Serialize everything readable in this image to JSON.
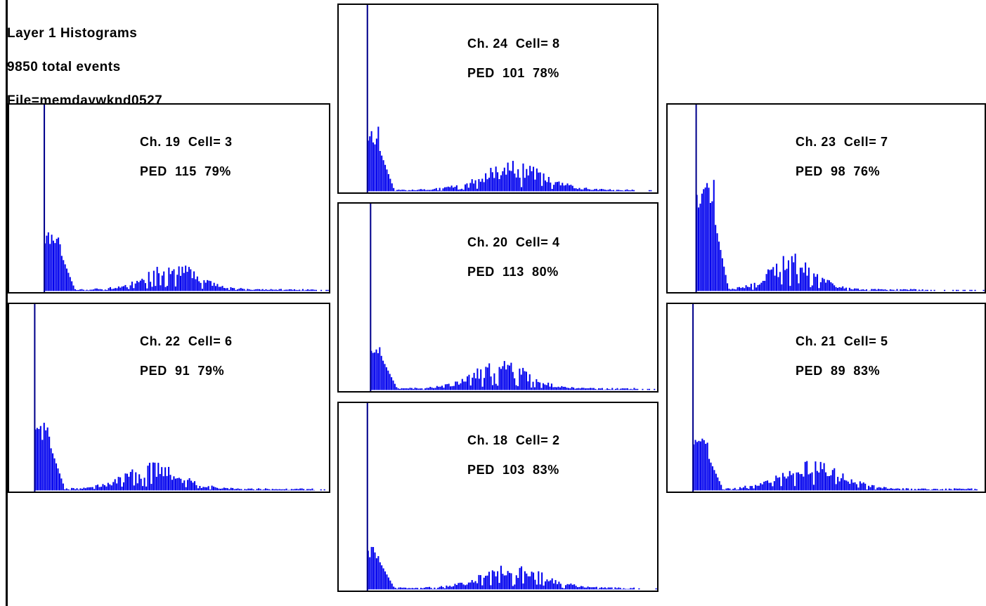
{
  "header": {
    "title": "Layer 1 Histograms",
    "events": "9850 total events",
    "file": "File=memdaywknd0527"
  },
  "colors": {
    "bars": "#0000ee",
    "pedestal_line": "#00008b",
    "frame": "#000000"
  },
  "chart_data": [
    {
      "type": "bar",
      "channel_label": "Ch. 24  Cell= 8",
      "ped_label": "PED  101  78%",
      "pedestal_bin": 0.09,
      "profile": {
        "spike": 0.35,
        "spike_w": 0.04,
        "hump_center": 0.5,
        "hump_height": 0.11,
        "hump_width": 0.22,
        "tail_end": 0.92
      }
    },
    {
      "type": "bar",
      "channel_label": "Ch. 19  Cell= 3",
      "ped_label": "PED  115  79%",
      "pedestal_bin": 0.11,
      "profile": {
        "spike": 0.32,
        "spike_w": 0.055,
        "hump_center": 0.45,
        "hump_height": 0.1,
        "hump_width": 0.2,
        "tail_end": 0.95
      }
    },
    {
      "type": "bar",
      "channel_label": "Ch. 23  Cell= 7",
      "ped_label": "PED  98  76%",
      "pedestal_bin": 0.09,
      "profile": {
        "spike": 0.63,
        "spike_w": 0.06,
        "hump_center": 0.33,
        "hump_height": 0.14,
        "hump_width": 0.16,
        "tail_end": 0.8
      }
    },
    {
      "type": "bar",
      "channel_label": "Ch. 20  Cell= 4",
      "ped_label": "PED  113  80%",
      "pedestal_bin": 0.1,
      "profile": {
        "spike": 0.25,
        "spike_w": 0.04,
        "hump_center": 0.45,
        "hump_height": 0.11,
        "hump_width": 0.2,
        "tail_end": 0.92
      }
    },
    {
      "type": "bar",
      "channel_label": "Ch. 22  Cell= 6",
      "ped_label": "PED  91  79%",
      "pedestal_bin": 0.08,
      "profile": {
        "spike": 0.38,
        "spike_w": 0.05,
        "hump_center": 0.4,
        "hump_height": 0.1,
        "hump_width": 0.2,
        "tail_end": 0.95
      }
    },
    {
      "type": "bar",
      "channel_label": "Ch. 21  Cell= 5",
      "ped_label": "PED  89  83%",
      "pedestal_bin": 0.08,
      "profile": {
        "spike": 0.28,
        "spike_w": 0.05,
        "hump_center": 0.4,
        "hump_height": 0.11,
        "hump_width": 0.22,
        "tail_end": 0.97
      }
    },
    {
      "type": "bar",
      "channel_label": "Ch. 18  Cell= 2",
      "ped_label": "PED  103  83%",
      "pedestal_bin": 0.09,
      "profile": {
        "spike": 0.23,
        "spike_w": 0.04,
        "hump_center": 0.5,
        "hump_height": 0.09,
        "hump_width": 0.22,
        "tail_end": 0.92
      }
    }
  ]
}
